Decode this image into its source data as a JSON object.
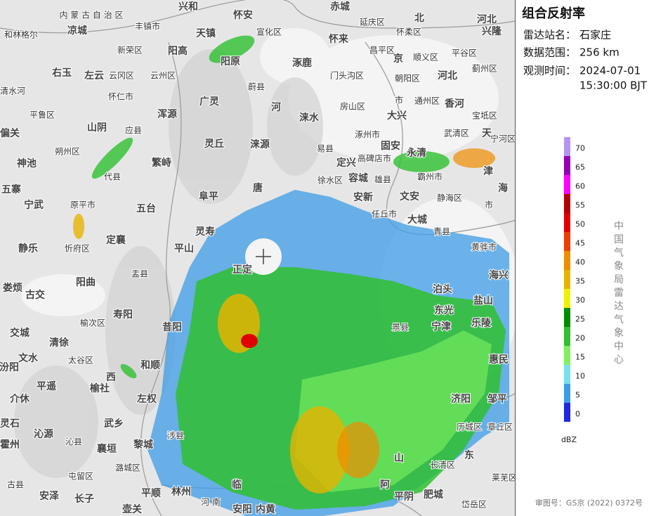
{
  "sidebar": {
    "title": "组合反射率",
    "info": [
      {
        "label": "雷达站名：",
        "value": "石家庄"
      },
      {
        "label": "数据范围：",
        "value": "256 km"
      }
    ],
    "time_label": "观测时间：",
    "time": [
      "2024-07-01",
      "15:30:00 BJT"
    ],
    "legend": {
      "ticks": [
        0,
        5,
        10,
        15,
        20,
        25,
        30,
        35,
        40,
        45,
        50,
        55,
        60,
        65,
        70
      ],
      "colors": [
        "#1e28e6",
        "#3c9ce6",
        "#78e0f0",
        "#80f060",
        "#30c030",
        "#008c00",
        "#f0f000",
        "#e6b400",
        "#f08c00",
        "#f03c00",
        "#e00000",
        "#b40000",
        "#ff00ff",
        "#9600b4",
        "#b496f0"
      ],
      "unit": "dBZ"
    },
    "credit": "中国气象局雷达气象中心",
    "review_number": "审图号：GS京 (2022) 0372号"
  },
  "map_labels": [
    "内 蒙 古 自 治 区",
    "兴和",
    "怀安",
    "赤城",
    "延庆区",
    "北",
    "京",
    "市",
    "河北",
    "和林格尔",
    "凉城",
    "丰镇市",
    "天镇",
    "宣化区",
    "怀来",
    "怀柔区",
    "平谷区",
    "兴隆",
    "新荣区",
    "阳高",
    "阳原",
    "昌平区",
    "顺义区",
    "蓟州区",
    "右玉",
    "左云",
    "云冈区",
    "云州区",
    "涿鹿",
    "门头沟区",
    "朝阳区",
    "河北",
    "宝坻区",
    "清水河",
    "怀仁市",
    "蔚县",
    "广灵",
    "河",
    "房山区",
    "大兴",
    "通州区",
    "香河",
    "平鲁区",
    "浑源",
    "涞水",
    "涿州市",
    "武清区",
    "天",
    "宁河区",
    "偏关",
    "山阴",
    "应县",
    "灵丘",
    "涞源",
    "易县",
    "固安",
    "永清",
    "朔州区",
    "高碑店市",
    "神池",
    "繁峙",
    "定兴",
    "五寨",
    "代县",
    "雄县",
    "霸州市",
    "津",
    "唐",
    "徐水区",
    "容城",
    "文安",
    "宁武",
    "原平市",
    "五台",
    "阜平",
    "安新",
    "静海区",
    "市",
    "海",
    "静乐",
    "忻府区",
    "定襄",
    "平山",
    "灵寿",
    "任丘市",
    "大城",
    "青县",
    "黄骅市",
    "阳曲",
    "盂县",
    "正定",
    "娄烦",
    "古交",
    "寿阳",
    "泊头",
    "海兴",
    "交城",
    "清徐",
    "榆次区",
    "昔阳",
    "景县",
    "东光",
    "盐山",
    "文水",
    "太谷区",
    "和顺",
    "宁津",
    "乐陵",
    "惠民",
    "平遥",
    "西",
    "榆社",
    "左权",
    "汾阳",
    "介休",
    "灵石",
    "沁源",
    "武乡",
    "济阳",
    "邹平",
    "霍州",
    "沁县",
    "襄垣",
    "黎城",
    "涉县",
    "历城区",
    "章丘区",
    "古县",
    "屯留区",
    "潞城区",
    "东",
    "长清区",
    "莱芜区",
    "安泽",
    "长子",
    "平顺",
    "临",
    "平阴",
    "肥城",
    "岱岳区",
    "壶关",
    "河 南",
    "林州",
    "安阳",
    "内黄",
    "山",
    "阿"
  ]
}
